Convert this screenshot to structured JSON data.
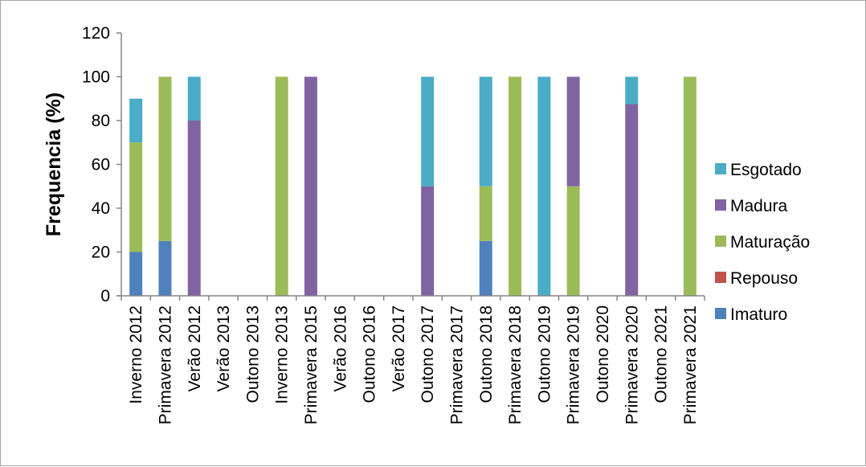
{
  "chart_data": {
    "type": "bar",
    "stacked": true,
    "title": "",
    "xlabel": "",
    "ylabel": "Frequencia (%)",
    "ylim": [
      0,
      120
    ],
    "yticks": [
      "0",
      "20",
      "40",
      "60",
      "80",
      "100",
      "120"
    ],
    "grid": false,
    "legend_position": "right",
    "categories": [
      "Inverno 2012",
      "Primavera 2012",
      "Verão 2012",
      "Verão 2013",
      "Outono 2013",
      "Inverno 2013",
      "Primavera 2015",
      "Verão 2016",
      "Outono 2016",
      "Verão 2017",
      "Outono 2017",
      "Primavera 2017",
      "Outono 2018",
      "Primavera 2018",
      "Outono 2019",
      "Primavera 2019",
      "Outono 2020",
      "Primavera 2020",
      "Outono 2021",
      "Primavera 2021"
    ],
    "series": [
      {
        "name": "Imaturo",
        "color": "#4f81bd",
        "values": [
          20,
          25,
          0,
          0,
          0,
          0,
          0,
          0,
          0,
          0,
          0,
          0,
          25,
          0,
          0,
          0,
          0,
          0,
          0,
          0
        ]
      },
      {
        "name": "Repouso",
        "color": "#c0504d",
        "values": [
          0,
          0,
          0,
          0,
          0,
          0,
          0,
          0,
          0,
          0,
          0,
          0,
          0,
          0,
          0,
          0,
          0,
          0,
          0,
          0
        ]
      },
      {
        "name": "Maturação",
        "color": "#9bbb59",
        "values": [
          50,
          75,
          0,
          0,
          0,
          100,
          0,
          0,
          0,
          0,
          0,
          0,
          25,
          100,
          0,
          50,
          0,
          0,
          0,
          100
        ]
      },
      {
        "name": "Madura",
        "color": "#8064a2",
        "values": [
          0,
          0,
          80,
          0,
          0,
          0,
          100,
          0,
          0,
          0,
          50,
          0,
          0,
          0,
          0,
          50,
          0,
          87.5,
          0,
          0
        ]
      },
      {
        "name": "Esgotado",
        "color": "#4bacc6",
        "values": [
          20,
          0,
          20,
          0,
          0,
          0,
          0,
          0,
          0,
          0,
          50,
          0,
          50,
          0,
          100,
          0,
          0,
          12.5,
          0,
          0
        ]
      }
    ],
    "legend_order": [
      "Esgotado",
      "Madura",
      "Maturação",
      "Repouso",
      "Imaturo"
    ]
  }
}
